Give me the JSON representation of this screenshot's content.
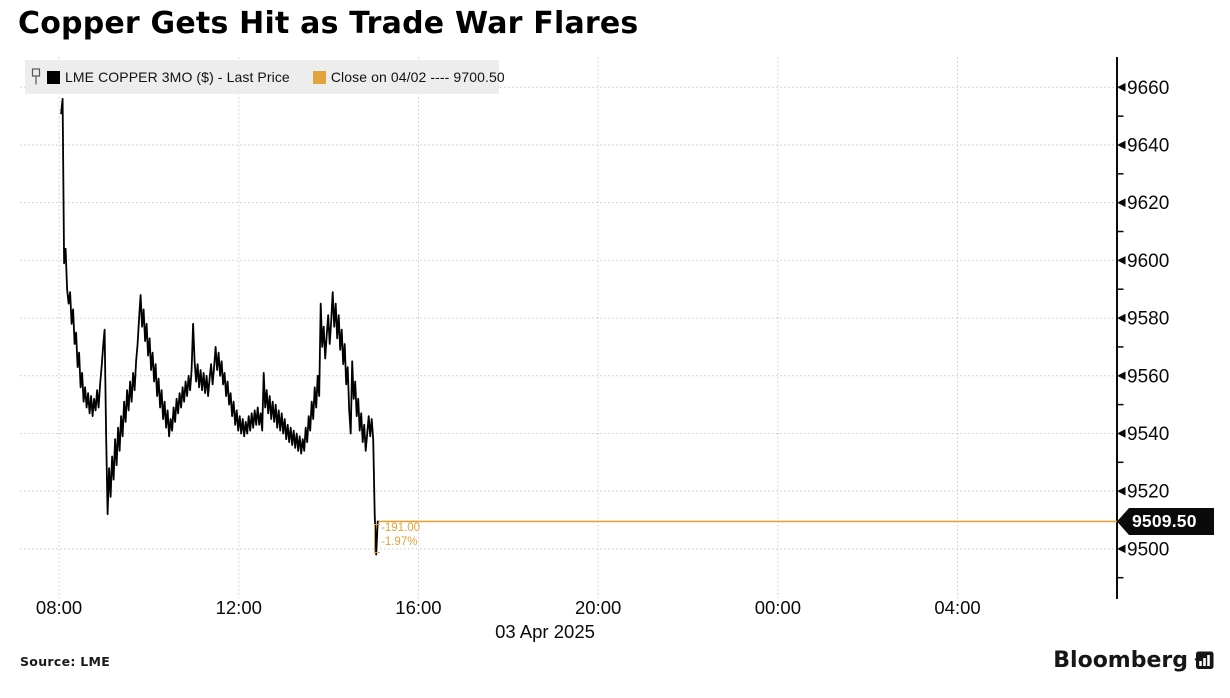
{
  "title": "Copper Gets Hit as Trade War Flares",
  "legend": {
    "pin_icon": "pin-icon",
    "series1": {
      "label": "LME COPPER 3MO ($) - Last Price",
      "color": "#000000"
    },
    "series2": {
      "label": "Close on 04/02 ---- 9700.50",
      "color": "#E2A33C"
    }
  },
  "footer": {
    "source": "Source: LME",
    "brand": "Bloomberg",
    "brand_icon": "bar-chart-bubble-icon"
  },
  "chart_data": {
    "type": "line",
    "title": "LME COPPER 3MO ($) - Last Price",
    "grid": true,
    "legend_position": "top-left",
    "x_axis": {
      "date_label": "03 Apr 2025",
      "xlim_hours": [
        7.13,
        31.55
      ],
      "ticks": [
        {
          "hour": 8,
          "label": "08:00"
        },
        {
          "hour": 12,
          "label": "12:00"
        },
        {
          "hour": 16,
          "label": "16:00"
        },
        {
          "hour": 20,
          "label": "20:00"
        },
        {
          "hour": 24,
          "label": "00:00"
        },
        {
          "hour": 28,
          "label": "04:00"
        }
      ]
    },
    "y_axis": {
      "ylim": [
        9484,
        9670.5
      ],
      "ticks": [
        {
          "v": 9660,
          "label": "9660"
        },
        {
          "v": 9640,
          "label": "9640"
        },
        {
          "v": 9620,
          "label": "9620"
        },
        {
          "v": 9600,
          "label": "9600"
        },
        {
          "v": 9580,
          "label": "9580"
        },
        {
          "v": 9560,
          "label": "9560"
        },
        {
          "v": 9540,
          "label": "9540"
        },
        {
          "v": 9520,
          "label": "9520"
        },
        {
          "v": 9500,
          "label": "9500"
        }
      ],
      "minor_ticks": [
        9650,
        9630,
        9610,
        9590,
        9570,
        9550,
        9530,
        9490
      ]
    },
    "series": {
      "name": "LME COPPER 3MO ($) - Last Price",
      "color": "#000000",
      "start_hour": 8.045,
      "step_hours": 0.0334,
      "prices": [
        9651,
        9656,
        9599,
        9604,
        9590,
        9585,
        9589,
        9578,
        9583,
        9571,
        9575,
        9563,
        9568,
        9556,
        9561,
        9551,
        9556,
        9549,
        9554,
        9547,
        9553,
        9546,
        9552,
        9548,
        9555,
        9549,
        9557,
        9563,
        9570,
        9576,
        9540,
        9512,
        9528,
        9518,
        9532,
        9524,
        9538,
        9529,
        9542,
        9534,
        9546,
        9539,
        9551,
        9544,
        9555,
        9548,
        9558,
        9551,
        9561,
        9555,
        9565,
        9571,
        9580,
        9588,
        9577,
        9583,
        9572,
        9578,
        9567,
        9573,
        9562,
        9568,
        9558,
        9564,
        9553,
        9559,
        9549,
        9555,
        9545,
        9551,
        9542,
        9548,
        9539,
        9545,
        9541,
        9549,
        9544,
        9552,
        9547,
        9554,
        9549,
        9556,
        9551,
        9558,
        9553,
        9560,
        9555,
        9562,
        9578,
        9565,
        9558,
        9564,
        9556,
        9562,
        9555,
        9561,
        9554,
        9560,
        9553,
        9559,
        9564,
        9557,
        9563,
        9570,
        9562,
        9568,
        9560,
        9565,
        9557,
        9561,
        9553,
        9558,
        9550,
        9554,
        9546,
        9551,
        9543,
        9548,
        9541,
        9546,
        9540,
        9545,
        9539,
        9544,
        9540,
        9546,
        9541,
        9547,
        9542,
        9548,
        9543,
        9549,
        9543,
        9547,
        9541,
        9561,
        9549,
        9555,
        9547,
        9553,
        9545,
        9551,
        9544,
        9550,
        9542,
        9548,
        9541,
        9547,
        9540,
        9545,
        9538,
        9543,
        9537,
        9542,
        9536,
        9541,
        9535,
        9540,
        9534,
        9539,
        9533,
        9538,
        9534,
        9542,
        9537,
        9546,
        9541,
        9551,
        9545,
        9556,
        9549,
        9560,
        9553,
        9585,
        9570,
        9577,
        9566,
        9574,
        9581,
        9571,
        9579,
        9589,
        9577,
        9585,
        9573,
        9581,
        9569,
        9576,
        9564,
        9571,
        9557,
        9563,
        9548,
        9540,
        9565,
        9552,
        9558,
        9546,
        9552,
        9541,
        9547,
        9537,
        9543,
        9534,
        9540,
        9546,
        9539,
        9545,
        9538,
        9512,
        9498,
        9509.5
      ]
    },
    "close_reference": {
      "label": "Close on 04/02",
      "value": 9700.5,
      "color": "#E2A33C"
    },
    "last_price": {
      "value": 9509.5,
      "display": "9509.50",
      "change": "-191.00",
      "change_pct": "-1.97%",
      "line_color": "#E2A33C"
    }
  }
}
